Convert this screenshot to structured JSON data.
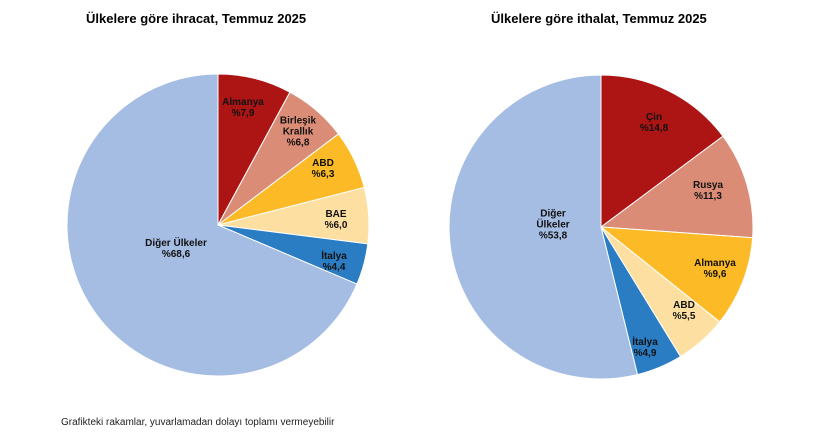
{
  "chart_data": [
    {
      "type": "pie",
      "title": "Ülkelere göre ihracat, Temmuz 2025",
      "slices": [
        {
          "label_lines": [
            "Almanya",
            "%7,9"
          ],
          "value": 7.9,
          "color": "#ad1414"
        },
        {
          "label_lines": [
            "Birleşik",
            "Krallık",
            "%6,8"
          ],
          "value": 6.8,
          "color": "#db8c76"
        },
        {
          "label_lines": [
            "ABD",
            "%6,3"
          ],
          "value": 6.3,
          "color": "#fbba26"
        },
        {
          "label_lines": [
            "BAE",
            "%6,0"
          ],
          "value": 6.0,
          "color": "#fde0a1"
        },
        {
          "label_lines": [
            "İtalya",
            "%4,4"
          ],
          "value": 4.4,
          "color": "#2a7cc3"
        },
        {
          "label_lines": [
            "Diğer Ülkeler",
            "%68,6"
          ],
          "value": 68.6,
          "color": "#a5bde3"
        }
      ]
    },
    {
      "type": "pie",
      "title": "Ülkelere göre ithalat, Temmuz 2025",
      "slices": [
        {
          "label_lines": [
            "Çin",
            "%14,8"
          ],
          "value": 14.8,
          "color": "#ad1414"
        },
        {
          "label_lines": [
            "Rusya",
            "%11,3"
          ],
          "value": 11.3,
          "color": "#db8c76"
        },
        {
          "label_lines": [
            "Almanya",
            "%9,6"
          ],
          "value": 9.6,
          "color": "#fbba26"
        },
        {
          "label_lines": [
            "ABD",
            "%5,5"
          ],
          "value": 5.5,
          "color": "#fde0a1"
        },
        {
          "label_lines": [
            "İtalya",
            "%4,9"
          ],
          "value": 4.9,
          "color": "#2a7cc3"
        },
        {
          "label_lines": [
            "Diğer",
            "Ülkeler",
            "%53,8"
          ],
          "value": 53.8,
          "color": "#a5bde3"
        }
      ]
    }
  ],
  "footnote": "Grafikteki rakamlar, yuvarlamadan dolayı toplamı vermeyebilir"
}
